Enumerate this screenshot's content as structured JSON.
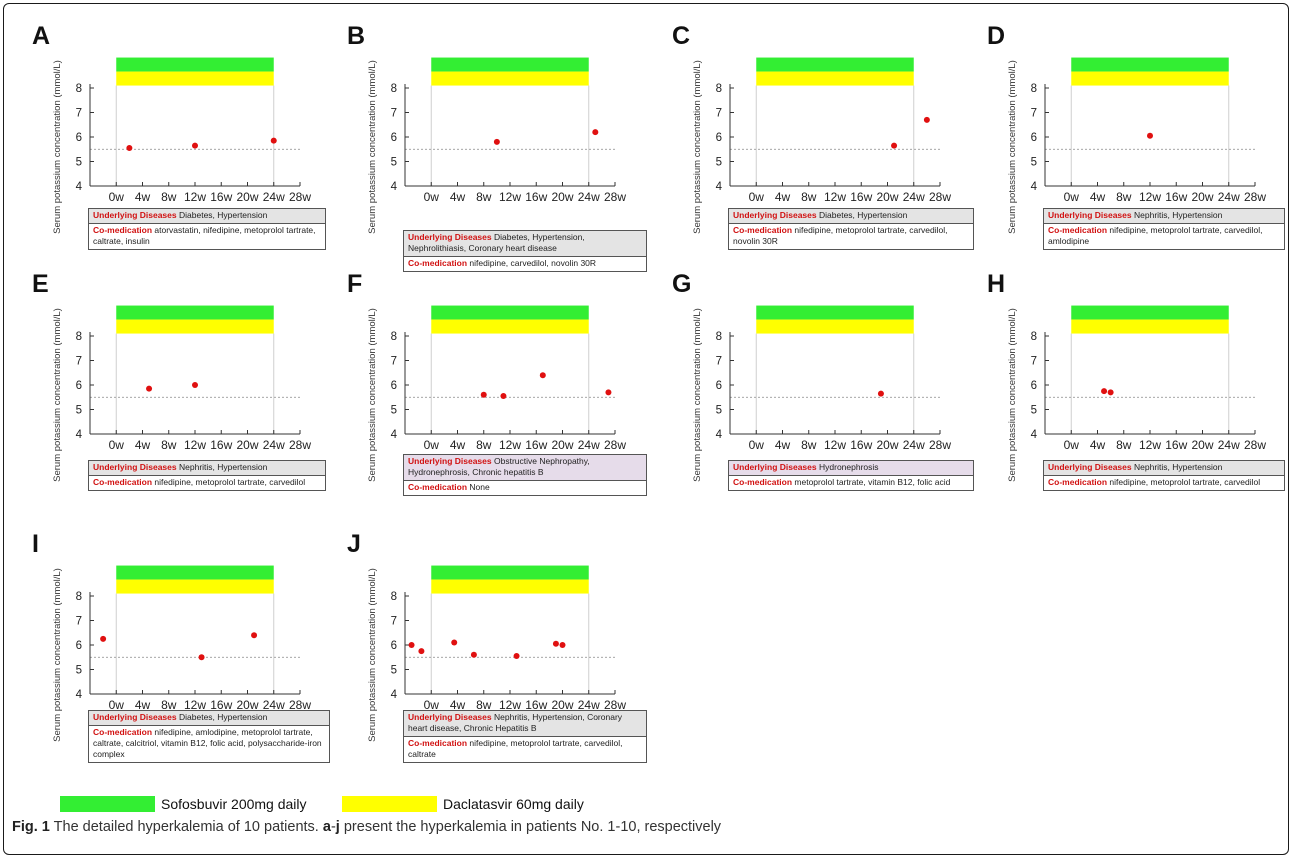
{
  "legend": [
    {
      "label": "Sofosbuvir 200mg daily",
      "color": "#33ee33"
    },
    {
      "label": "Daclatasvir 60mg daily",
      "color": "#ffff00"
    }
  ],
  "caption": {
    "fig": "Fig. 1",
    "text_1": " The detailed hyperkalemia of 10 patients. ",
    "bold_1": "a",
    "dash": "-",
    "bold_2": "j",
    "text_2": " present the hyperkalemia in patients No. 1-10, respectively"
  },
  "chart_data": [
    {
      "panel": "A",
      "type": "scatter",
      "ylabel": "Serum potassium concentration (mmol/L)",
      "ylim": [
        4,
        8
      ],
      "yticks": [
        "4",
        "5",
        "6",
        "7",
        "8"
      ],
      "xticks": [
        "0w",
        "4w",
        "8w",
        "12w",
        "16w",
        "20w",
        "24w",
        "28w"
      ],
      "threshold": 5.5,
      "treatment_weeks": [
        0,
        24
      ],
      "points": [
        {
          "x": 2,
          "y": 5.55
        },
        {
          "x": 12,
          "y": 5.65
        },
        {
          "x": 24,
          "y": 5.85
        }
      ],
      "info": {
        "diseases_label": "Underlying Diseases",
        "diseases": "Diabetes, Hypertension",
        "comed_label": "Co-medication",
        "comed": "atorvastatin, nifedipine, metoprolol tartrate, caltrate, insulin"
      }
    },
    {
      "panel": "B",
      "type": "scatter",
      "ylabel": "Serum potassium concentration (mmol/L)",
      "ylim": [
        4,
        8
      ],
      "yticks": [
        "4",
        "5",
        "6",
        "7",
        "8"
      ],
      "xticks": [
        "0w",
        "4w",
        "8w",
        "12w",
        "16w",
        "20w",
        "24w",
        "28w"
      ],
      "threshold": 5.5,
      "treatment_weeks": [
        0,
        24
      ],
      "points": [
        {
          "x": 10,
          "y": 5.8
        },
        {
          "x": 25,
          "y": 6.2
        }
      ],
      "info": {
        "diseases_label": "Underlying Diseases",
        "diseases": "Diabetes, Hypertension, Nephrolithiasis, Coronary heart disease",
        "comed_label": "Co-medication",
        "comed": "nifedipine, carvedilol, novolin 30R"
      }
    },
    {
      "panel": "C",
      "type": "scatter",
      "ylabel": "Serum potassium concentration (mmol/L)",
      "ylim": [
        4,
        8
      ],
      "yticks": [
        "4",
        "5",
        "6",
        "7",
        "8"
      ],
      "xticks": [
        "0w",
        "4w",
        "8w",
        "12w",
        "16w",
        "20w",
        "24w",
        "28w"
      ],
      "threshold": 5.5,
      "treatment_weeks": [
        0,
        24
      ],
      "points": [
        {
          "x": 21,
          "y": 5.65
        },
        {
          "x": 26,
          "y": 6.7
        }
      ],
      "info": {
        "diseases_label": "Underlying Diseases",
        "diseases": "Diabetes, Hypertension",
        "comed_label": "Co-medication",
        "comed": "nifedipine, metoprolol tartrate, carvedilol, novolin 30R"
      }
    },
    {
      "panel": "D",
      "type": "scatter",
      "ylabel": "Serum potassium concentration (mmol/L)",
      "ylim": [
        4,
        8
      ],
      "yticks": [
        "4",
        "5",
        "6",
        "7",
        "8"
      ],
      "xticks": [
        "0w",
        "4w",
        "8w",
        "12w",
        "16w",
        "20w",
        "24w",
        "28w"
      ],
      "threshold": 5.5,
      "treatment_weeks": [
        0,
        24
      ],
      "points": [
        {
          "x": 12,
          "y": 6.05
        }
      ],
      "info": {
        "diseases_label": "Underlying Diseases",
        "diseases": "Nephritis, Hypertension",
        "comed_label": "Co-medication",
        "comed": "nifedipine, metoprolol tartrate, carvedilol, amlodipine"
      }
    },
    {
      "panel": "E",
      "type": "scatter",
      "ylabel": "Serum potassium concentration (mmol/L)",
      "ylim": [
        4,
        8
      ],
      "yticks": [
        "4",
        "5",
        "6",
        "7",
        "8"
      ],
      "xticks": [
        "0w",
        "4w",
        "8w",
        "12w",
        "16w",
        "20w",
        "24w",
        "28w"
      ],
      "threshold": 5.5,
      "treatment_weeks": [
        0,
        24
      ],
      "points": [
        {
          "x": 5,
          "y": 5.85
        },
        {
          "x": 12,
          "y": 6.0
        }
      ],
      "info": {
        "diseases_label": "Underlying Diseases",
        "diseases": "Nephritis, Hypertension",
        "comed_label": "Co-medication",
        "comed": "nifedipine, metoprolol tartrate, carvedilol"
      }
    },
    {
      "panel": "F",
      "type": "scatter",
      "ylabel": "Serum potassium concentration (mmol/L)",
      "ylim": [
        4,
        8
      ],
      "yticks": [
        "4",
        "5",
        "6",
        "7",
        "8"
      ],
      "xticks": [
        "0w",
        "4w",
        "8w",
        "12w",
        "16w",
        "20w",
        "24w",
        "28w"
      ],
      "threshold": 5.5,
      "treatment_weeks": [
        0,
        24
      ],
      "points": [
        {
          "x": 8,
          "y": 5.6
        },
        {
          "x": 11,
          "y": 5.55
        },
        {
          "x": 17,
          "y": 6.4
        },
        {
          "x": 27,
          "y": 5.7
        }
      ],
      "info": {
        "diseases_label": "Underlying Diseases",
        "diseases": "Obstructive Nephropathy, Hydronephrosis, Chronic hepatitis B",
        "comed_label": "Co-medication",
        "comed": "None"
      }
    },
    {
      "panel": "G",
      "type": "scatter",
      "ylabel": "Serum potassium concentration (mmol/L)",
      "ylim": [
        4,
        8
      ],
      "yticks": [
        "4",
        "5",
        "6",
        "7",
        "8"
      ],
      "xticks": [
        "0w",
        "4w",
        "8w",
        "12w",
        "16w",
        "20w",
        "24w",
        "28w"
      ],
      "threshold": 5.5,
      "treatment_weeks": [
        0,
        24
      ],
      "points": [
        {
          "x": 19,
          "y": 5.65
        }
      ],
      "info": {
        "diseases_label": "Underlying Diseases",
        "diseases": "Hydronephrosis",
        "comed_label": "Co-medication",
        "comed": "metoprolol tartrate, vitamin B12, folic acid"
      }
    },
    {
      "panel": "H",
      "type": "scatter",
      "ylabel": "Serum potassium concentration (mmol/L)",
      "ylim": [
        4,
        8
      ],
      "yticks": [
        "4",
        "5",
        "6",
        "7",
        "8"
      ],
      "xticks": [
        "0w",
        "4w",
        "8w",
        "12w",
        "16w",
        "20w",
        "24w",
        "28w"
      ],
      "threshold": 5.5,
      "treatment_weeks": [
        0,
        24
      ],
      "points": [
        {
          "x": 5,
          "y": 5.75
        },
        {
          "x": 6,
          "y": 5.7
        }
      ],
      "info": {
        "diseases_label": "Underlying Diseases",
        "diseases": "Nephritis, Hypertension",
        "comed_label": "Co-medication",
        "comed": "nifedipine, metoprolol tartrate, carvedilol"
      }
    },
    {
      "panel": "I",
      "type": "scatter",
      "ylabel": "Serum potassium concentration (mmol/L)",
      "ylim": [
        4,
        8
      ],
      "yticks": [
        "4",
        "5",
        "6",
        "7",
        "8"
      ],
      "xticks": [
        "0w",
        "4w",
        "8w",
        "12w",
        "16w",
        "20w",
        "24w",
        "28w"
      ],
      "threshold": 5.5,
      "treatment_weeks": [
        0,
        24
      ],
      "points": [
        {
          "x": -2,
          "y": 6.25
        },
        {
          "x": 13,
          "y": 5.5
        },
        {
          "x": 21,
          "y": 6.4
        }
      ],
      "info": {
        "diseases_label": "Underlying Diseases",
        "diseases": "Diabetes, Hypertension",
        "comed_label": "Co-medication",
        "comed": "nifedipine, amlodipine, metoprolol tartrate, caltrate, calcitriol, vitamin B12, folic acid, polysaccharide-iron complex"
      }
    },
    {
      "panel": "J",
      "type": "scatter",
      "ylabel": "Serum potassium concentration (mmol/L)",
      "ylim": [
        4,
        8
      ],
      "yticks": [
        "4",
        "5",
        "6",
        "7",
        "8"
      ],
      "xticks": [
        "0w",
        "4w",
        "8w",
        "12w",
        "16w",
        "20w",
        "24w",
        "28w"
      ],
      "threshold": 5.5,
      "treatment_weeks": [
        0,
        24
      ],
      "points": [
        {
          "x": -3,
          "y": 6.0
        },
        {
          "x": -1.5,
          "y": 5.75
        },
        {
          "x": 3.5,
          "y": 6.1
        },
        {
          "x": 6.5,
          "y": 5.6
        },
        {
          "x": 13,
          "y": 5.55
        },
        {
          "x": 19,
          "y": 6.05
        },
        {
          "x": 20,
          "y": 6.0
        }
      ],
      "info": {
        "diseases_label": "Underlying Diseases",
        "diseases": "Nephritis, Hypertension, Coronary heart disease, Chronic Hepatitis B",
        "comed_label": "Co-medication",
        "comed": "nifedipine, metoprolol tartrate, carvedilol, caltrate"
      }
    }
  ]
}
